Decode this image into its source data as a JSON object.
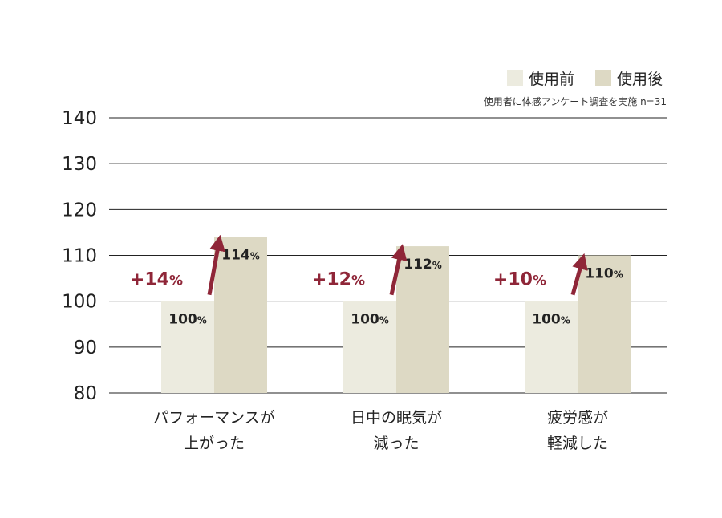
{
  "chart_data": {
    "type": "bar",
    "categories": [
      [
        "パフォーマンスが",
        "上がった"
      ],
      [
        "日中の眠気が",
        "減った"
      ],
      [
        "疲労感が",
        "軽減した"
      ]
    ],
    "series": [
      {
        "name": "使用前",
        "values": [
          100,
          100,
          100
        ],
        "color": "#ecebdf"
      },
      {
        "name": "使用後",
        "values": [
          114,
          112,
          110
        ],
        "color": "#ddd9c4"
      }
    ],
    "value_labels": {
      "before": [
        "100",
        "100",
        "100"
      ],
      "after": [
        "114",
        "112",
        "110"
      ],
      "unit": "%"
    },
    "differences": [
      {
        "text": "+14",
        "unit": "%"
      },
      {
        "text": "+12",
        "unit": "%"
      },
      {
        "text": "+10",
        "unit": "%"
      }
    ],
    "ylim": [
      80,
      140
    ],
    "yticks": [
      140,
      130,
      120,
      110,
      100,
      90,
      80
    ],
    "grid": true,
    "legend_position": "top-right",
    "note": "使用者に体感アンケート調査を実施 n=31",
    "accent_color": "#8f2638",
    "xlabel": "",
    "ylabel": ""
  }
}
